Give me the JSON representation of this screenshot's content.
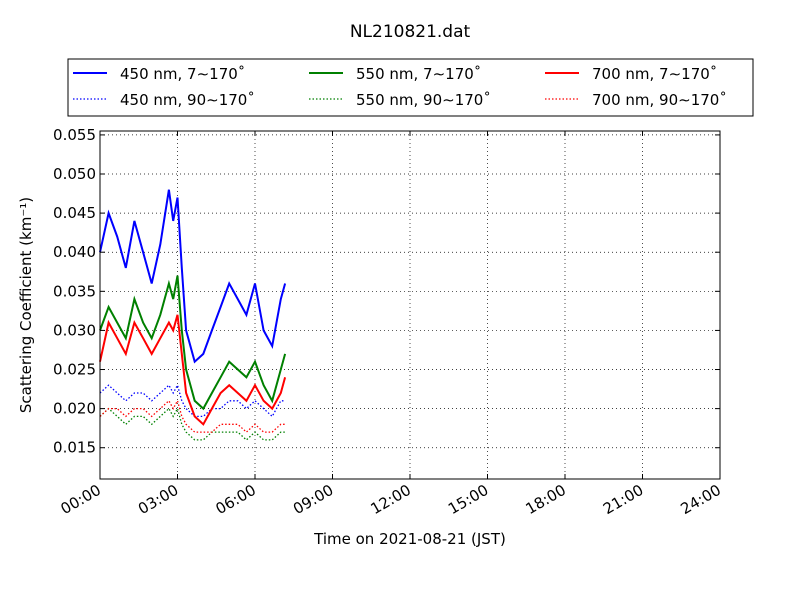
{
  "chart_data": {
    "type": "line",
    "title": "NL210821.dat",
    "xlabel": "Time on 2021-08-21 (JST)",
    "ylabel": "Scattering Coefficient (km⁻¹)",
    "xlim_hours": [
      0,
      24
    ],
    "ylim": [
      0.011,
      0.0555
    ],
    "x_ticks": [
      "00:00",
      "03:00",
      "06:00",
      "09:00",
      "12:00",
      "15:00",
      "18:00",
      "21:00",
      "24:00"
    ],
    "y_ticks": [
      "0.015",
      "0.020",
      "0.025",
      "0.030",
      "0.035",
      "0.040",
      "0.045",
      "0.050",
      "0.055"
    ],
    "grid": "dotted",
    "legend_position": "top",
    "series": [
      {
        "name": "450 nm, 7∼170˚",
        "color": "#0000ff",
        "style": "solid",
        "x": [
          "00:00",
          "00:20",
          "00:40",
          "01:00",
          "01:20",
          "01:40",
          "02:00",
          "02:20",
          "02:40",
          "02:50",
          "03:00",
          "03:10",
          "03:20",
          "03:40",
          "04:00",
          "04:20",
          "04:40",
          "05:00",
          "05:20",
          "05:40",
          "06:00",
          "06:20",
          "06:40",
          "07:00",
          "07:10"
        ],
        "y": [
          0.04,
          0.045,
          0.042,
          0.038,
          0.044,
          0.04,
          0.036,
          0.041,
          0.048,
          0.044,
          0.047,
          0.038,
          0.03,
          0.026,
          0.027,
          0.03,
          0.033,
          0.036,
          0.034,
          0.032,
          0.036,
          0.03,
          0.028,
          0.034,
          0.036
        ]
      },
      {
        "name": "550 nm, 7∼170˚",
        "color": "#008000",
        "style": "solid",
        "x": [
          "00:00",
          "00:20",
          "00:40",
          "01:00",
          "01:20",
          "01:40",
          "02:00",
          "02:20",
          "02:40",
          "02:50",
          "03:00",
          "03:10",
          "03:20",
          "03:40",
          "04:00",
          "04:20",
          "04:40",
          "05:00",
          "05:20",
          "05:40",
          "06:00",
          "06:20",
          "06:40",
          "07:00",
          "07:10"
        ],
        "y": [
          0.03,
          0.033,
          0.031,
          0.029,
          0.034,
          0.031,
          0.029,
          0.032,
          0.036,
          0.034,
          0.037,
          0.03,
          0.025,
          0.021,
          0.02,
          0.022,
          0.024,
          0.026,
          0.025,
          0.024,
          0.026,
          0.023,
          0.021,
          0.025,
          0.027
        ]
      },
      {
        "name": "700 nm, 7∼170˚",
        "color": "#ff0000",
        "style": "solid",
        "x": [
          "00:00",
          "00:20",
          "00:40",
          "01:00",
          "01:20",
          "01:40",
          "02:00",
          "02:20",
          "02:40",
          "02:50",
          "03:00",
          "03:10",
          "03:20",
          "03:40",
          "04:00",
          "04:20",
          "04:40",
          "05:00",
          "05:20",
          "05:40",
          "06:00",
          "06:20",
          "06:40",
          "07:00",
          "07:10"
        ],
        "y": [
          0.026,
          0.031,
          0.029,
          0.027,
          0.031,
          0.029,
          0.027,
          0.029,
          0.031,
          0.03,
          0.032,
          0.027,
          0.022,
          0.019,
          0.018,
          0.02,
          0.022,
          0.023,
          0.022,
          0.021,
          0.023,
          0.021,
          0.02,
          0.022,
          0.024
        ]
      },
      {
        "name": "450 nm, 90∼170˚",
        "color": "#0000ff",
        "style": "dotted",
        "x": [
          "00:00",
          "00:20",
          "00:40",
          "01:00",
          "01:20",
          "01:40",
          "02:00",
          "02:20",
          "02:40",
          "02:50",
          "03:00",
          "03:10",
          "03:20",
          "03:40",
          "04:00",
          "04:20",
          "04:40",
          "05:00",
          "05:20",
          "05:40",
          "06:00",
          "06:20",
          "06:40",
          "07:00",
          "07:10"
        ],
        "y": [
          0.022,
          0.023,
          0.022,
          0.021,
          0.022,
          0.022,
          0.021,
          0.022,
          0.023,
          0.022,
          0.023,
          0.021,
          0.02,
          0.019,
          0.019,
          0.02,
          0.02,
          0.021,
          0.021,
          0.02,
          0.021,
          0.02,
          0.019,
          0.021,
          0.021
        ]
      },
      {
        "name": "550 nm, 90∼170˚",
        "color": "#008000",
        "style": "dotted",
        "x": [
          "00:00",
          "00:20",
          "00:40",
          "01:00",
          "01:20",
          "01:40",
          "02:00",
          "02:20",
          "02:40",
          "02:50",
          "03:00",
          "03:10",
          "03:20",
          "03:40",
          "04:00",
          "04:20",
          "04:40",
          "05:00",
          "05:20",
          "05:40",
          "06:00",
          "06:20",
          "06:40",
          "07:00",
          "07:10"
        ],
        "y": [
          0.019,
          0.02,
          0.019,
          0.018,
          0.019,
          0.019,
          0.018,
          0.019,
          0.02,
          0.019,
          0.02,
          0.018,
          0.017,
          0.016,
          0.016,
          0.017,
          0.017,
          0.017,
          0.017,
          0.016,
          0.017,
          0.016,
          0.016,
          0.017,
          0.017
        ]
      },
      {
        "name": "700 nm, 90∼170˚",
        "color": "#ff0000",
        "style": "dotted",
        "x": [
          "00:00",
          "00:20",
          "00:40",
          "01:00",
          "01:20",
          "01:40",
          "02:00",
          "02:20",
          "02:40",
          "02:50",
          "03:00",
          "03:10",
          "03:20",
          "03:40",
          "04:00",
          "04:20",
          "04:40",
          "05:00",
          "05:20",
          "05:40",
          "06:00",
          "06:20",
          "06:40",
          "07:00",
          "07:10"
        ],
        "y": [
          0.019,
          0.02,
          0.02,
          0.019,
          0.02,
          0.02,
          0.019,
          0.02,
          0.021,
          0.02,
          0.021,
          0.019,
          0.018,
          0.017,
          0.017,
          0.017,
          0.018,
          0.018,
          0.018,
          0.017,
          0.018,
          0.017,
          0.017,
          0.018,
          0.018
        ]
      }
    ]
  }
}
